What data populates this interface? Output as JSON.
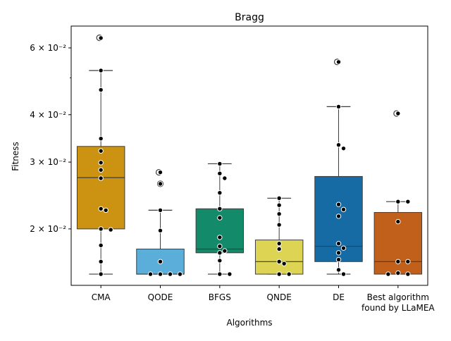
{
  "chart_data": {
    "type": "box",
    "title": "Bragg",
    "xlabel": "Algorithms",
    "ylabel": "Fitness",
    "y_scale": "log",
    "ylim": [
      0.0142,
      0.0685
    ],
    "y_major_ticks": [
      {
        "value": 0.02,
        "label": "2 × 10⁻²"
      },
      {
        "value": 0.03,
        "label": "3 × 10⁻²"
      },
      {
        "value": 0.04,
        "label": "4 × 10⁻²"
      },
      {
        "value": 0.06,
        "label": "6 × 10⁻²"
      }
    ],
    "y_minor_ticks": [
      0.05
    ],
    "categories": [
      "CMA",
      "QODE",
      "BFGS",
      "QNDE",
      "DE",
      "Best algorithm found by LLaMEA"
    ],
    "category_labels": [
      [
        "CMA"
      ],
      [
        "QODE"
      ],
      [
        "BFGS"
      ],
      [
        "QNDE"
      ],
      [
        "DE"
      ],
      [
        "Best algorithm",
        "found by LLaMEA"
      ]
    ],
    "boxes": [
      {
        "name": "CMA",
        "color": "#CC9212",
        "q1": 0.02,
        "median": 0.0273,
        "q3": 0.033,
        "whisker_low": 0.0152,
        "whisker_high": 0.0523,
        "outliers": [
          0.0638
        ]
      },
      {
        "name": "QODE",
        "color": "#5BADDA",
        "q1": 0.0152,
        "median": 0.0152,
        "q3": 0.0177,
        "whisker_low": 0.0152,
        "whisker_high": 0.0224,
        "outliers": [
          0.0282,
          0.0263
        ]
      },
      {
        "name": "BFGS",
        "color": "#138A6A",
        "q1": 0.0173,
        "median": 0.0177,
        "q3": 0.0226,
        "whisker_low": 0.0152,
        "whisker_high": 0.0297,
        "outliers": []
      },
      {
        "name": "QNDE",
        "color": "#DCD452",
        "q1": 0.0152,
        "median": 0.0164,
        "q3": 0.0187,
        "whisker_low": 0.0152,
        "whisker_high": 0.0241,
        "outliers": []
      },
      {
        "name": "DE",
        "color": "#166BA5",
        "q1": 0.0164,
        "median": 0.018,
        "q3": 0.0275,
        "whisker_low": 0.0152,
        "whisker_high": 0.042,
        "outliers": [
          0.0551
        ]
      },
      {
        "name": "Best algorithm found by LLaMEA",
        "color": "#C1601B",
        "q1": 0.0152,
        "median": 0.0164,
        "q3": 0.0221,
        "whisker_low": 0.0152,
        "whisker_high": 0.0236,
        "outliers": [
          0.0403
        ]
      }
    ],
    "points": [
      [
        0.0637,
        0.0523,
        0.0465,
        0.0346,
        0.0321,
        0.0299,
        0.0286,
        0.0272,
        0.0226,
        0.0224,
        0.02,
        0.0199,
        0.0181,
        0.0164,
        0.0152
      ],
      [
        0.0282,
        0.0263,
        0.0224,
        0.0198,
        0.0164,
        0.0152,
        0.0152,
        0.0152,
        0.0152
      ],
      [
        0.0297,
        0.028,
        0.0272,
        0.0249,
        0.0226,
        0.0214,
        0.019,
        0.018,
        0.0175,
        0.0173,
        0.0165,
        0.0152,
        0.0152
      ],
      [
        0.0241,
        0.0231,
        0.0219,
        0.0205,
        0.0183,
        0.0177,
        0.0164,
        0.0162,
        0.0152,
        0.0152
      ],
      [
        0.042,
        0.0551,
        0.0333,
        0.0326,
        0.0232,
        0.0225,
        0.0216,
        0.0183,
        0.0178,
        0.0173,
        0.0166,
        0.0156,
        0.0152
      ],
      [
        0.0403,
        0.0236,
        0.0236,
        0.0209,
        0.0164,
        0.0164,
        0.0153,
        0.0152,
        0.0152
      ]
    ]
  }
}
